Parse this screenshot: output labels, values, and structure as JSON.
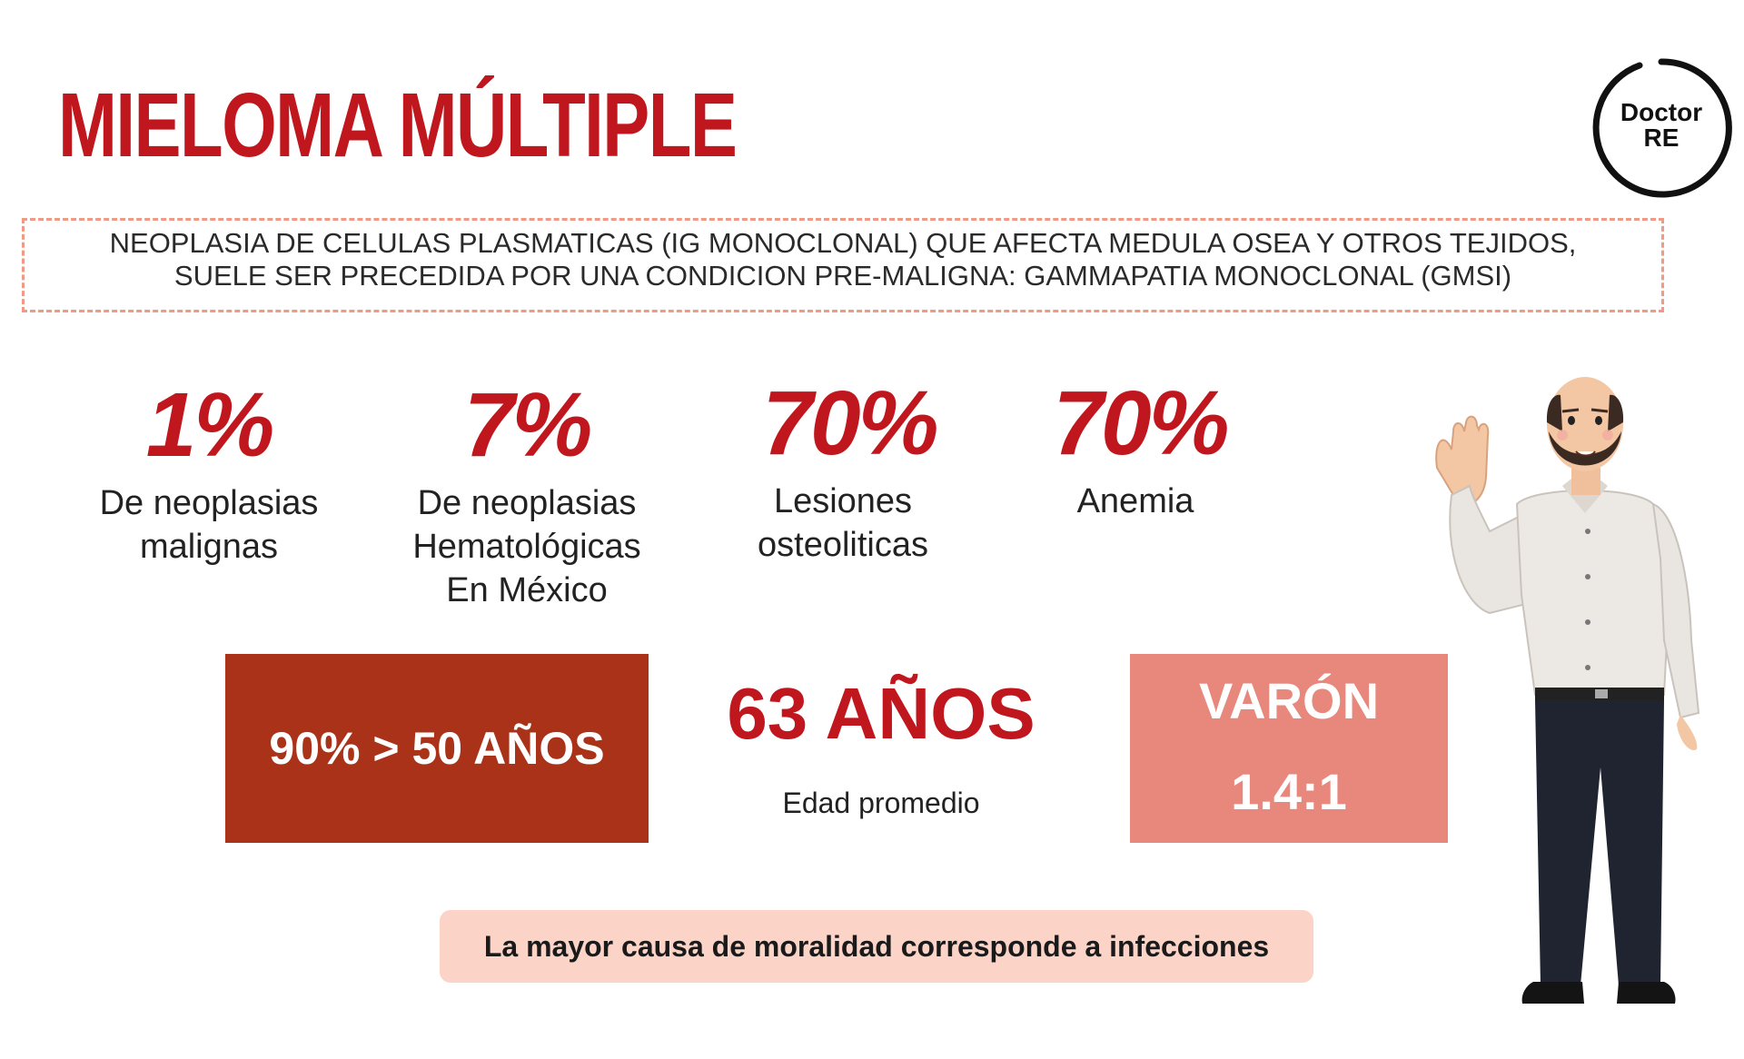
{
  "title": "MIELOMA MÚLTIPLE",
  "logo": {
    "line1": "Doctor",
    "line2": "RE"
  },
  "definition": {
    "line1": "NEOPLASIA DE CELULAS PLASMATICAS (IG MONOCLONAL) QUE AFECTA MEDULA OSEA Y OTROS TEJIDOS,",
    "line2": "SUELE SER PRECEDIDA POR UNA CONDICION PRE-MALIGNA: GAMMAPATIA MONOCLONAL (GMSI)"
  },
  "stats": [
    {
      "value": "1%",
      "label_lines": [
        "De neoplasias",
        "malignas"
      ]
    },
    {
      "value": "7%",
      "label_lines": [
        "De neoplasias",
        "Hematológicas",
        "En México"
      ]
    },
    {
      "value": "70%",
      "label_lines": [
        "Lesiones",
        "osteoliticas"
      ]
    },
    {
      "value": "70%",
      "label_lines": [
        "Anemia"
      ]
    }
  ],
  "age_box": {
    "text": "90% > 50 AÑOS"
  },
  "mean_age": {
    "value": "63 AÑOS",
    "label": "Edad promedio"
  },
  "sex_box": {
    "line1": "VARÓN",
    "line2": "1.4:1"
  },
  "note": "La mayor causa de moralidad corresponde a infecciones",
  "colors": {
    "red": "#c0161d",
    "dark_orange": "#a93218",
    "salmon": "#e8877b",
    "pink": "#fbd3c7",
    "dash": "#f09a86"
  },
  "illustration": "man-waving-illustration"
}
